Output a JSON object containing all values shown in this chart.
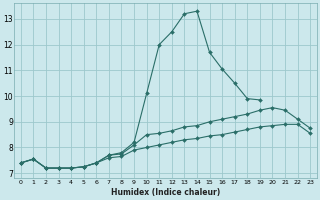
{
  "xlabel": "Humidex (Indice chaleur)",
  "bg_color": "#cce8ec",
  "grid_color": "#9dc8cc",
  "line_color": "#2a6e68",
  "xlim": [
    -0.5,
    23.5
  ],
  "ylim": [
    6.8,
    13.6
  ],
  "yticks": [
    7,
    8,
    9,
    10,
    11,
    12,
    13
  ],
  "xticks": [
    0,
    1,
    2,
    3,
    4,
    5,
    6,
    7,
    8,
    9,
    10,
    11,
    12,
    13,
    14,
    15,
    16,
    17,
    18,
    19,
    20,
    21,
    22,
    23
  ],
  "series": [
    {
      "x": [
        0,
        1,
        2,
        3,
        4,
        5,
        6,
        7,
        8,
        9,
        10,
        11,
        12,
        13,
        14,
        15,
        16,
        17,
        18,
        19,
        20,
        21,
        22,
        23
      ],
      "y": [
        7.4,
        7.55,
        7.2,
        7.2,
        7.2,
        7.25,
        7.4,
        7.6,
        7.65,
        7.9,
        8.0,
        8.1,
        8.2,
        8.3,
        8.35,
        8.45,
        8.5,
        8.6,
        8.7,
        8.8,
        8.85,
        8.9,
        8.9,
        8.55
      ]
    },
    {
      "x": [
        0,
        1,
        2,
        3,
        4,
        5,
        6,
        7,
        8,
        9,
        10,
        11,
        12,
        13,
        14,
        15,
        16,
        17,
        18,
        19,
        20,
        21,
        22,
        23
      ],
      "y": [
        7.4,
        7.55,
        7.2,
        7.2,
        7.2,
        7.25,
        7.4,
        7.7,
        7.75,
        8.1,
        8.5,
        8.55,
        8.65,
        8.8,
        8.85,
        9.0,
        9.1,
        9.2,
        9.3,
        9.45,
        9.55,
        9.45,
        9.1,
        8.75
      ]
    },
    {
      "x": [
        0,
        1,
        2,
        3,
        4,
        5,
        6,
        7,
        8,
        9,
        10,
        11,
        12,
        13,
        14,
        15,
        16,
        17,
        18,
        19
      ],
      "y": [
        7.4,
        7.55,
        7.2,
        7.2,
        7.2,
        7.25,
        7.4,
        7.7,
        7.8,
        8.2,
        10.1,
        12.0,
        12.5,
        13.2,
        13.3,
        11.7,
        11.05,
        10.5,
        9.9,
        9.85
      ]
    }
  ]
}
